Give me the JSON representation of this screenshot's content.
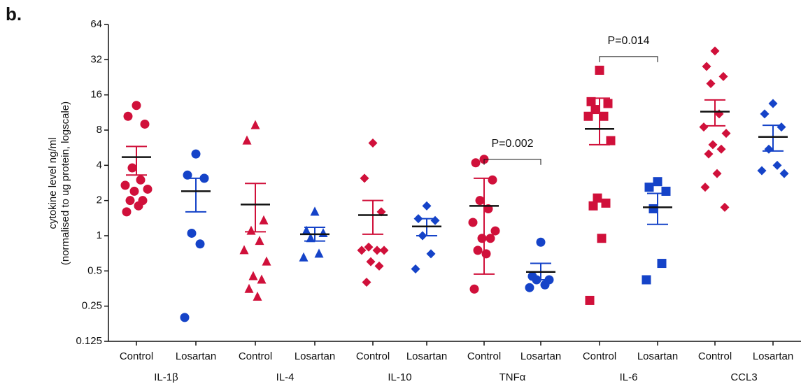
{
  "chart_data": {
    "type": "strip",
    "panel_label": "b.",
    "ylabel": [
      "cytokine level ng/ml",
      "(normalised to ug protein, logscale)"
    ],
    "yscale": "log",
    "ylim": [
      0.125,
      64
    ],
    "yticks": [
      0.125,
      0.25,
      0.5,
      1,
      2,
      4,
      8,
      16,
      32,
      64
    ],
    "groups": [
      {
        "name": "IL-1β",
        "marker": "circle",
        "conditions": [
          {
            "label": "Control",
            "color": "#d0103a",
            "values": [
              13,
              10.5,
              9,
              3.8,
              3,
              2.7,
              2.5,
              2.4,
              2,
              2,
              1.8,
              1.6
            ],
            "mean": 4.7,
            "sem_upper": 5.8,
            "sem_lower": 3.3
          },
          {
            "label": "Losartan",
            "color": "#1543c8",
            "values": [
              5,
              3.3,
              3.1,
              1.05,
              0.85,
              0.2
            ],
            "mean": 2.4,
            "sem_upper": 3.1,
            "sem_lower": 1.6
          }
        ]
      },
      {
        "name": "IL-4",
        "marker": "triangle",
        "conditions": [
          {
            "label": "Control",
            "color": "#d0103a",
            "values": [
              8.8,
              6.5,
              1.35,
              1.1,
              0.9,
              0.75,
              0.6,
              0.45,
              0.42,
              0.35,
              0.3
            ],
            "mean": 1.85,
            "sem_upper": 2.8,
            "sem_lower": 1.08
          },
          {
            "label": "Losartan",
            "color": "#1543c8",
            "values": [
              1.6,
              1.1,
              1.05,
              0.95,
              0.7,
              0.65
            ],
            "mean": 1.03,
            "sem_upper": 1.18,
            "sem_lower": 0.9
          }
        ]
      },
      {
        "name": "IL-10",
        "marker": "diamond",
        "conditions": [
          {
            "label": "Control",
            "color": "#d0103a",
            "values": [
              6.2,
              3.1,
              1.6,
              0.8,
              0.75,
              0.75,
              0.75,
              0.6,
              0.55,
              0.4
            ],
            "mean": 1.5,
            "sem_upper": 2.0,
            "sem_lower": 1.03
          },
          {
            "label": "Losartan",
            "color": "#1543c8",
            "values": [
              1.8,
              1.4,
              1.35,
              1.0,
              0.7,
              0.52
            ],
            "mean": 1.2,
            "sem_upper": 1.4,
            "sem_lower": 1.0
          }
        ]
      },
      {
        "name": "TNFα",
        "marker": "circle",
        "conditions": [
          {
            "label": "Control",
            "color": "#d0103a",
            "values": [
              4.5,
              4.2,
              3.0,
              2.0,
              1.7,
              1.3,
              1.1,
              0.95,
              0.95,
              0.75,
              0.7,
              0.35
            ],
            "mean": 1.8,
            "sem_upper": 3.1,
            "sem_lower": 0.47
          },
          {
            "label": "Losartan",
            "color": "#1543c8",
            "values": [
              0.88,
              0.45,
              0.42,
              0.42,
              0.38,
              0.36
            ],
            "mean": 0.49,
            "sem_upper": 0.58,
            "sem_lower": 0.42
          }
        ]
      },
      {
        "name": "IL-6",
        "marker": "square",
        "conditions": [
          {
            "label": "Control",
            "color": "#d0103a",
            "values": [
              26,
              14,
              13.5,
              12,
              10.5,
              10.5,
              6.5,
              2.1,
              1.9,
              1.8,
              0.95,
              0.28
            ],
            "mean": 8.2,
            "sem_upper": 15,
            "sem_lower": 6
          },
          {
            "label": "Losartan",
            "color": "#1543c8",
            "values": [
              2.9,
              2.6,
              2.4,
              1.7,
              0.58,
              0.42
            ],
            "mean": 1.75,
            "sem_upper": 2.3,
            "sem_lower": 1.25
          }
        ]
      },
      {
        "name": "CCL3",
        "marker": "diamond",
        "conditions": [
          {
            "label": "Control",
            "color": "#d0103a",
            "values": [
              38,
              28,
              23,
              20,
              11,
              8.5,
              7.5,
              6,
              5.5,
              5,
              3.4,
              2.6,
              1.75
            ],
            "mean": 11.5,
            "sem_upper": 14.5,
            "sem_lower": 8.7
          },
          {
            "label": "Losartan",
            "color": "#1543c8",
            "values": [
              13.5,
              11,
              8.5,
              5.5,
              4,
              3.6,
              3.4
            ],
            "mean": 7,
            "sem_upper": 8.8,
            "sem_lower": 5.3
          }
        ]
      }
    ],
    "annotations": [
      {
        "text": "P=0.002",
        "group": 3,
        "at": 4.5
      },
      {
        "text": "P=0.014",
        "group": 4,
        "at": 34
      }
    ]
  }
}
